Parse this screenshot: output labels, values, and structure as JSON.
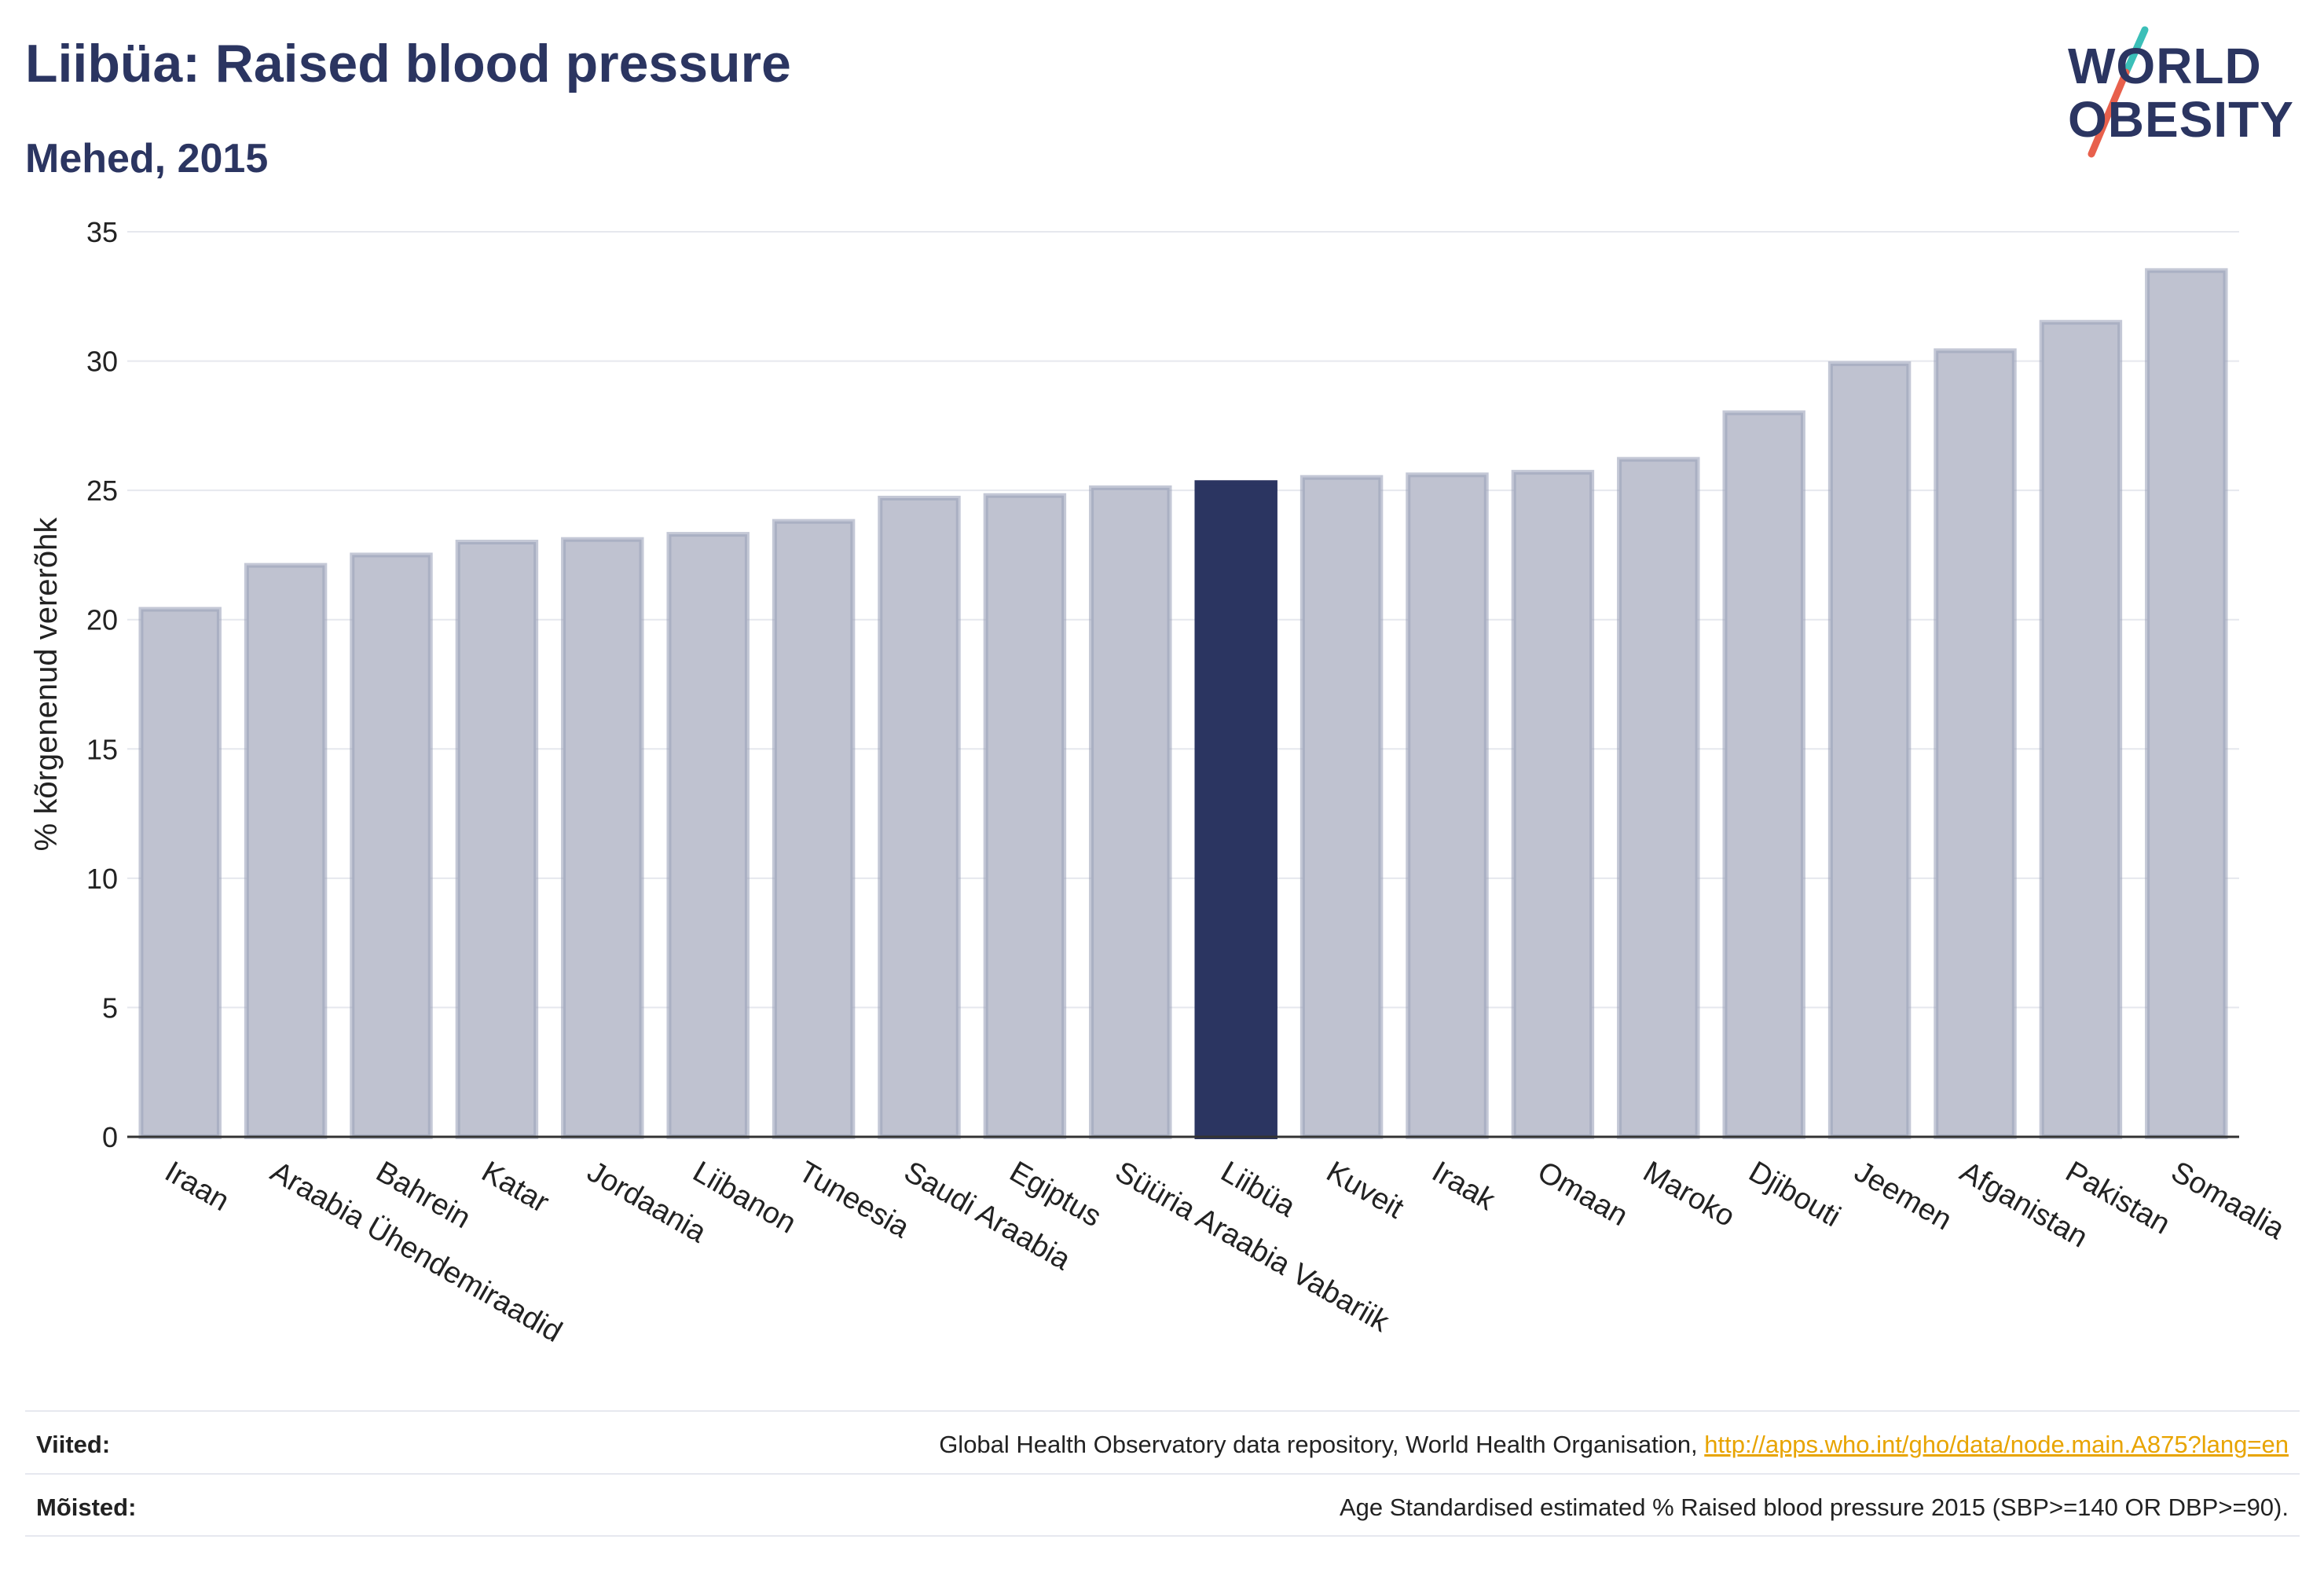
{
  "header": {
    "title": "Liibüa: Raised blood pressure",
    "subtitle": "Mehed, 2015"
  },
  "logo": {
    "line1": "WORLD",
    "line2": "OBESITY",
    "colors": {
      "text": "#2b3561",
      "slash_top": "#3bbfb8",
      "slash_bottom": "#e8604c"
    }
  },
  "colors": {
    "bar": "#bfc2d0",
    "bar_stroke": "#9da3bb",
    "highlight": "#2b3561",
    "grid": "#e6e8ee",
    "axis": "#333333"
  },
  "chart_data": {
    "type": "bar",
    "ylabel": "% kõrgenenud vererõhk",
    "ylim": [
      0,
      35
    ],
    "yticks": [
      0,
      5,
      10,
      15,
      20,
      25,
      30,
      35
    ],
    "grid": true,
    "highlight": "Liibüa",
    "categories": [
      "Iraan",
      "Araabia Ühendemiraadid",
      "Bahrein",
      "Katar",
      "Jordaania",
      "Liibanon",
      "Tuneesia",
      "Saudi Araabia",
      "Egiptus",
      "Süüria Araabia Vabariik",
      "Liibüa",
      "Kuveit",
      "Iraak",
      "Omaan",
      "Maroko",
      "Djibouti",
      "Jeemen",
      "Afganistan",
      "Pakistan",
      "Somaalia"
    ],
    "values": [
      20.4,
      22.1,
      22.5,
      23.0,
      23.1,
      23.3,
      23.8,
      24.7,
      24.8,
      25.1,
      25.3,
      25.5,
      25.6,
      25.7,
      26.2,
      28.0,
      29.9,
      30.4,
      31.5,
      33.5
    ]
  },
  "footer": {
    "sources_label": "Viited:",
    "sources_text": "Global Health Observatory data repository, World Health Organisation, ",
    "sources_link": "http://apps.who.int/gho/data/node.main.A875?lang=en",
    "definitions_label": "Mõisted:",
    "definitions_text": "Age Standardised estimated % Raised blood pressure 2015 (SBP>=140 OR DBP>=90)."
  }
}
